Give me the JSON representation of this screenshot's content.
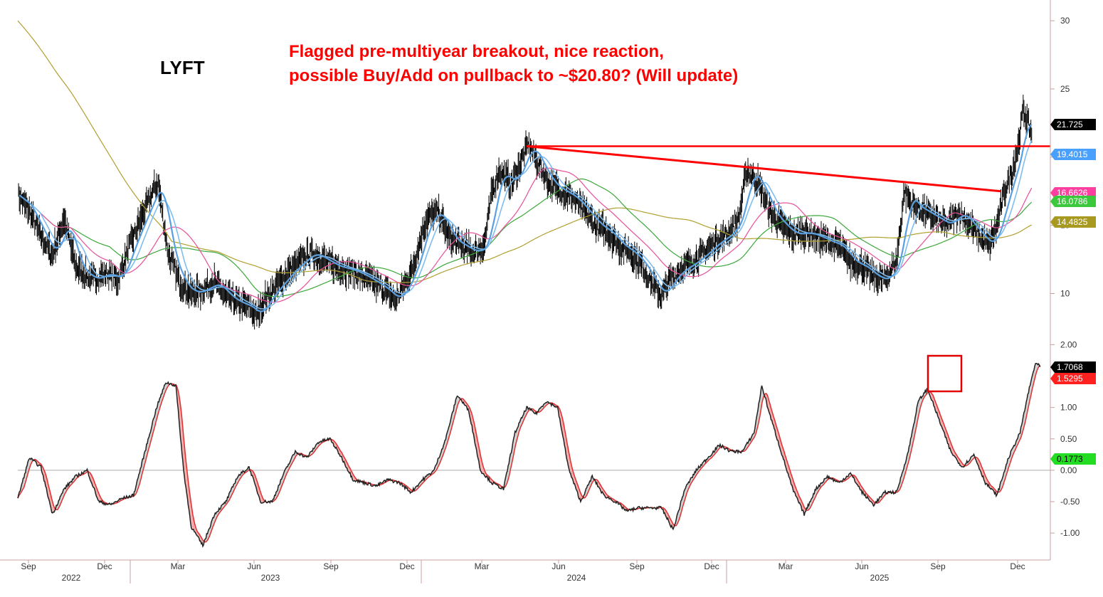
{
  "chart_data": [
    {
      "type": "line",
      "ticker": "LYFT",
      "annotation": [
        "Flagged pre-multiyear breakout, nice reaction,",
        "possible Buy/Add on pullback to ~$20.80? (Will update)"
      ],
      "y_ticks": [
        10,
        15,
        20,
        25,
        30
      ],
      "ylim": [
        7,
        31
      ],
      "x_tick_labels": [
        "Sep",
        "Dec",
        "Mar",
        "Jun",
        "Sep",
        "Dec",
        "Mar",
        "Jun",
        "Sep",
        "Dec",
        "Mar",
        "Jun",
        "Sep",
        "Dec"
      ],
      "year_labels": [
        "2022",
        "2023",
        "2024",
        "2025"
      ],
      "price_keypoints": [
        [
          0,
          17.3
        ],
        [
          15,
          16.0
        ],
        [
          30,
          14.2
        ],
        [
          45,
          12.8
        ],
        [
          60,
          15.5
        ],
        [
          75,
          12.0
        ],
        [
          95,
          11.0
        ],
        [
          115,
          11.5
        ],
        [
          130,
          11.0
        ],
        [
          145,
          13.5
        ],
        [
          160,
          15.5
        ],
        [
          175,
          17.5
        ],
        [
          182,
          18.1
        ],
        [
          195,
          13.0
        ],
        [
          210,
          10.8
        ],
        [
          225,
          10.0
        ],
        [
          240,
          10.3
        ],
        [
          255,
          10.8
        ],
        [
          270,
          9.8
        ],
        [
          285,
          9.3
        ],
        [
          300,
          9.0
        ],
        [
          310,
          8.3
        ],
        [
          320,
          9.5
        ],
        [
          335,
          10.5
        ],
        [
          350,
          11.5
        ],
        [
          365,
          12.3
        ],
        [
          380,
          13.0
        ],
        [
          395,
          12.5
        ],
        [
          410,
          12.0
        ],
        [
          425,
          11.8
        ],
        [
          440,
          11.5
        ],
        [
          455,
          11.0
        ],
        [
          470,
          10.5
        ],
        [
          480,
          10.0
        ],
        [
          490,
          9.5
        ],
        [
          500,
          10.5
        ],
        [
          510,
          11.5
        ],
        [
          520,
          13.5
        ],
        [
          530,
          15.5
        ],
        [
          545,
          16.0
        ],
        [
          560,
          14.0
        ],
        [
          575,
          13.5
        ],
        [
          590,
          13.0
        ],
        [
          605,
          13.5
        ],
        [
          615,
          17.5
        ],
        [
          625,
          19.0
        ],
        [
          640,
          18.0
        ],
        [
          655,
          20.0
        ],
        [
          662,
          21.0
        ],
        [
          675,
          19.5
        ],
        [
          690,
          18.0
        ],
        [
          705,
          17.5
        ],
        [
          720,
          17.0
        ],
        [
          735,
          16.0
        ],
        [
          750,
          15.0
        ],
        [
          765,
          14.5
        ],
        [
          780,
          13.5
        ],
        [
          795,
          13.0
        ],
        [
          810,
          12.0
        ],
        [
          825,
          10.5
        ],
        [
          835,
          9.8
        ],
        [
          845,
          11.0
        ],
        [
          860,
          11.8
        ],
        [
          875,
          12.3
        ],
        [
          890,
          13.0
        ],
        [
          905,
          13.8
        ],
        [
          920,
          14.3
        ],
        [
          935,
          15.5
        ],
        [
          945,
          19.0
        ],
        [
          955,
          18.5
        ],
        [
          965,
          17.5
        ],
        [
          975,
          16.0
        ],
        [
          990,
          15.0
        ],
        [
          1005,
          14.3
        ],
        [
          1020,
          14.5
        ],
        [
          1035,
          14.2
        ],
        [
          1050,
          13.8
        ],
        [
          1065,
          13.5
        ],
        [
          1080,
          12.3
        ],
        [
          1095,
          12.0
        ],
        [
          1110,
          11.2
        ],
        [
          1125,
          11.0
        ],
        [
          1140,
          12.5
        ],
        [
          1150,
          17.5
        ],
        [
          1160,
          16.5
        ],
        [
          1175,
          16.0
        ],
        [
          1190,
          15.5
        ],
        [
          1205,
          15.0
        ],
        [
          1220,
          16.0
        ],
        [
          1235,
          15.0
        ],
        [
          1250,
          14.0
        ],
        [
          1260,
          13.5
        ],
        [
          1270,
          15.0
        ],
        [
          1280,
          17.5
        ],
        [
          1290,
          19.0
        ],
        [
          1298,
          21.0
        ],
        [
          1304,
          23.5
        ],
        [
          1310,
          22.5
        ],
        [
          1315,
          21.7
        ]
      ],
      "ma_fast_last": "19.4015",
      "ma_mid_last": "16.6626",
      "ma_slow_last": "16.0786",
      "ma_long_last": "14.4825",
      "last_price": "21.725",
      "resistance_level": 20.8,
      "trendline_start": [
        660,
        20.8
      ],
      "trendline_end": [
        1275,
        17.5
      ],
      "colors": {
        "price": "#000000",
        "ma_fast": "#5aa0e0",
        "ma_fast2": "#7fbdf0",
        "ma_mid": "#e8509a",
        "ma_slow": "#3aa83a",
        "ma_long": "#b0a030",
        "resistance": "#ff0000",
        "annotation": "#ff0000"
      },
      "badges": [
        {
          "label": "21.725",
          "bg": "#000000",
          "fg": "#ffffff",
          "value": 21.725
        },
        {
          "label": "19.4015",
          "bg": "#4aa0ff",
          "fg": "#ffffff",
          "value": 19.4015
        },
        {
          "label": "16.6626",
          "bg": "#ff3fa0",
          "fg": "#ffffff",
          "value": 16.6626
        },
        {
          "label": "16.0786",
          "bg": "#3cc83c",
          "fg": "#ffffff",
          "value": 16.0786
        },
        {
          "label": "14.4825",
          "bg": "#a89a20",
          "fg": "#ffffff",
          "value": 14.4825
        }
      ]
    },
    {
      "type": "line",
      "y_ticks": [
        -1.0,
        -0.5,
        0.0,
        0.5,
        1.0,
        2.0
      ],
      "y_tick_labels": [
        "-1.00",
        "-0.50",
        "0.00",
        "0.50",
        "1.00",
        "2.00"
      ],
      "ylim": [
        -1.35,
        2.05
      ],
      "osc_keypoints": [
        [
          0,
          -0.45
        ],
        [
          15,
          0.2
        ],
        [
          30,
          0.05
        ],
        [
          45,
          -0.7
        ],
        [
          60,
          -0.3
        ],
        [
          75,
          -0.1
        ],
        [
          90,
          0.0
        ],
        [
          105,
          -0.5
        ],
        [
          120,
          -0.55
        ],
        [
          135,
          -0.45
        ],
        [
          150,
          -0.4
        ],
        [
          165,
          0.3
        ],
        [
          180,
          1.0
        ],
        [
          192,
          1.4
        ],
        [
          205,
          1.35
        ],
        [
          215,
          0.0
        ],
        [
          225,
          -0.9
        ],
        [
          240,
          -1.2
        ],
        [
          255,
          -0.7
        ],
        [
          270,
          -0.5
        ],
        [
          285,
          -0.1
        ],
        [
          300,
          0.05
        ],
        [
          315,
          -0.5
        ],
        [
          330,
          -0.5
        ],
        [
          345,
          -0.05
        ],
        [
          360,
          0.3
        ],
        [
          375,
          0.2
        ],
        [
          390,
          0.45
        ],
        [
          405,
          0.5
        ],
        [
          420,
          0.2
        ],
        [
          435,
          -0.15
        ],
        [
          450,
          -0.2
        ],
        [
          465,
          -0.25
        ],
        [
          480,
          -0.15
        ],
        [
          495,
          -0.2
        ],
        [
          510,
          -0.35
        ],
        [
          525,
          -0.15
        ],
        [
          540,
          0.0
        ],
        [
          555,
          0.5
        ],
        [
          570,
          1.2
        ],
        [
          585,
          0.95
        ],
        [
          600,
          0.0
        ],
        [
          615,
          -0.2
        ],
        [
          630,
          -0.3
        ],
        [
          645,
          0.6
        ],
        [
          660,
          1.0
        ],
        [
          672,
          0.9
        ],
        [
          685,
          1.1
        ],
        [
          700,
          1.0
        ],
        [
          715,
          0.0
        ],
        [
          730,
          -0.5
        ],
        [
          745,
          -0.1
        ],
        [
          760,
          -0.4
        ],
        [
          775,
          -0.5
        ],
        [
          790,
          -0.65
        ],
        [
          805,
          -0.6
        ],
        [
          820,
          -0.6
        ],
        [
          835,
          -0.6
        ],
        [
          850,
          -0.95
        ],
        [
          865,
          -0.3
        ],
        [
          880,
          0.0
        ],
        [
          895,
          0.2
        ],
        [
          910,
          0.4
        ],
        [
          925,
          0.3
        ],
        [
          940,
          0.3
        ],
        [
          955,
          0.6
        ],
        [
          965,
          1.35
        ],
        [
          975,
          0.9
        ],
        [
          990,
          0.3
        ],
        [
          1005,
          -0.3
        ],
        [
          1020,
          -0.7
        ],
        [
          1035,
          -0.3
        ],
        [
          1050,
          -0.1
        ],
        [
          1065,
          -0.2
        ],
        [
          1080,
          -0.05
        ],
        [
          1095,
          -0.35
        ],
        [
          1110,
          -0.55
        ],
        [
          1125,
          -0.35
        ],
        [
          1140,
          -0.35
        ],
        [
          1155,
          0.3
        ],
        [
          1168,
          1.1
        ],
        [
          1180,
          1.3
        ],
        [
          1195,
          0.8
        ],
        [
          1210,
          0.3
        ],
        [
          1225,
          0.05
        ],
        [
          1240,
          0.25
        ],
        [
          1255,
          -0.2
        ],
        [
          1270,
          -0.4
        ],
        [
          1285,
          0.2
        ],
        [
          1300,
          0.6
        ],
        [
          1310,
          1.2
        ],
        [
          1320,
          1.71
        ],
        [
          1326,
          1.65
        ]
      ],
      "signal_last": "1.5295",
      "osc_last": "1.7068",
      "extra_badge": "0.1773",
      "colors": {
        "osc": "#222222",
        "signal": "#e03030",
        "fill_up": "#cfcfcf",
        "fill_down": "#f4a7a7",
        "zero": "#aaaaaa",
        "highlight_box": "#e00000"
      },
      "badges": [
        {
          "label": "1.7068",
          "bg": "#000000",
          "fg": "#ffffff",
          "value": 1.7068
        },
        {
          "label": "1.5295",
          "bg": "#ff2020",
          "fg": "#ffffff",
          "value": 1.5295
        },
        {
          "label": "0.1773",
          "bg": "#22dd22",
          "fg": "#000000",
          "value": 0.1773
        }
      ]
    }
  ]
}
